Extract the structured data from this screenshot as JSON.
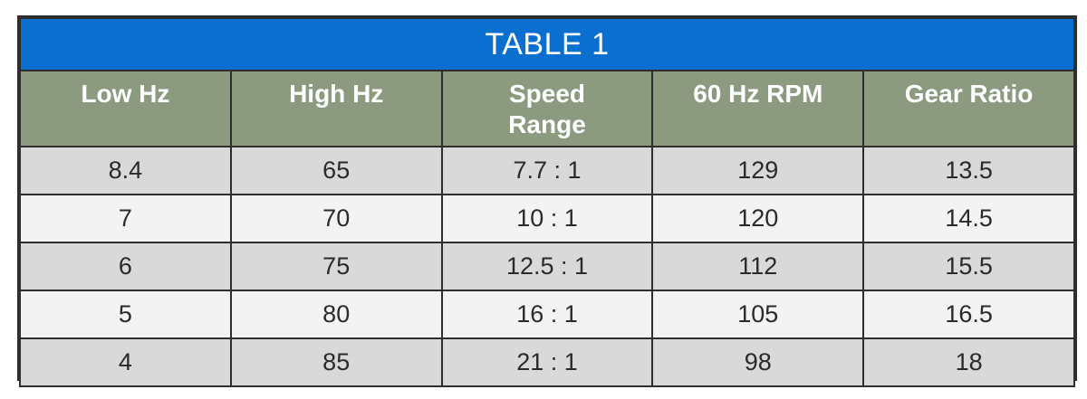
{
  "table": {
    "title": "TABLE 1",
    "headers": [
      "Low Hz",
      "High Hz",
      "Speed\nRange",
      "60 Hz RPM",
      "Gear Ratio"
    ],
    "rows": [
      [
        "8.4",
        "65",
        "7.7 : 1",
        "129",
        "13.5"
      ],
      [
        "7",
        "70",
        "10 : 1",
        "120",
        "14.5"
      ],
      [
        "6",
        "75",
        "12.5 : 1",
        "112",
        "15.5"
      ],
      [
        "5",
        "80",
        "16 : 1",
        "105",
        "16.5"
      ],
      [
        "4",
        "85",
        "21 : 1",
        "98",
        "18"
      ]
    ]
  },
  "colors": {
    "title_bg": "#0a6fcf",
    "header_bg": "#8c9a7f",
    "row_shade": "#d9d9da",
    "row_light": "#f3f3f3",
    "border": "#2e2e2e"
  }
}
